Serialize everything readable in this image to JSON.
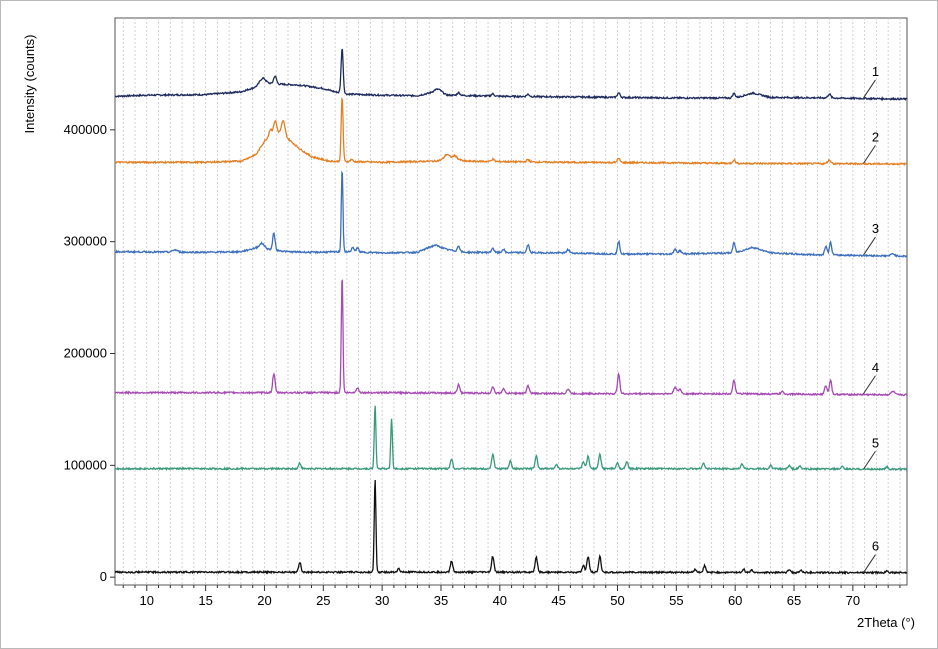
{
  "chart_data": {
    "type": "line",
    "xlabel": "2Theta (°)",
    "ylabel": "Intensity (counts)",
    "xlim": [
      7.3,
      74.6
    ],
    "ylim": [
      -7000,
      500000
    ],
    "x_ticks": [
      10,
      15,
      20,
      25,
      30,
      35,
      40,
      45,
      50,
      55,
      60,
      65,
      70
    ],
    "x_minor_step": 1,
    "y_ticks": [
      0,
      100000,
      200000,
      300000,
      400000
    ],
    "grid": true,
    "grid_x_step": 1,
    "series": [
      {
        "name": "1",
        "color": "#1e2a5c",
        "baseline": 432000,
        "points": [
          [
            7.3,
            430000
          ],
          [
            10,
            431000
          ],
          [
            15,
            431500
          ],
          [
            18,
            434000
          ],
          [
            19.5,
            439000
          ],
          [
            20,
            442000
          ],
          [
            21,
            441000
          ],
          [
            23,
            440000
          ],
          [
            25,
            437000
          ],
          [
            26,
            434000
          ],
          [
            27,
            432000
          ],
          [
            30,
            431000
          ],
          [
            33,
            430500
          ],
          [
            34.5,
            434000
          ],
          [
            35.5,
            431000
          ],
          [
            40,
            430000
          ],
          [
            45,
            429500
          ],
          [
            50,
            429000
          ],
          [
            55,
            428500
          ],
          [
            60,
            428500
          ],
          [
            61.5,
            433000
          ],
          [
            63,
            429000
          ],
          [
            68,
            428500
          ],
          [
            74.6,
            427500
          ]
        ],
        "peaks": [
          [
            19.8,
            5000,
            0.25
          ],
          [
            20.9,
            7000,
            0.12
          ],
          [
            26.6,
            40000,
            0.09
          ],
          [
            34.8,
            3000,
            0.3
          ],
          [
            36.5,
            2500,
            0.12
          ],
          [
            39.4,
            2000,
            0.12
          ],
          [
            42.4,
            2000,
            0.12
          ],
          [
            50.1,
            4000,
            0.12
          ],
          [
            59.9,
            4000,
            0.12
          ],
          [
            68.0,
            3500,
            0.12
          ]
        ]
      },
      {
        "name": "2",
        "color": "#e67e22",
        "baseline": 371000,
        "points": [
          [
            7.3,
            371000
          ],
          [
            15,
            371000
          ],
          [
            18,
            372000
          ],
          [
            19.3,
            378000
          ],
          [
            20,
            390000
          ],
          [
            21,
            399000
          ],
          [
            22,
            392000
          ],
          [
            23,
            383000
          ],
          [
            24,
            376000
          ],
          [
            25.5,
            372000
          ],
          [
            30,
            371000
          ],
          [
            34.5,
            372000
          ],
          [
            36,
            375000
          ],
          [
            37,
            372000
          ],
          [
            45,
            371000
          ],
          [
            55,
            370500
          ],
          [
            60,
            370000
          ],
          [
            74.6,
            369500
          ]
        ],
        "peaks": [
          [
            20.5,
            6000,
            0.12
          ],
          [
            20.9,
            10000,
            0.12
          ],
          [
            21.6,
            13000,
            0.15
          ],
          [
            26.6,
            58000,
            0.08
          ],
          [
            27.4,
            2000,
            0.1
          ],
          [
            35.5,
            4000,
            0.2
          ],
          [
            36.2,
            2500,
            0.15
          ],
          [
            39.4,
            2000,
            0.12
          ],
          [
            42.4,
            2000,
            0.12
          ],
          [
            50.1,
            3500,
            0.12
          ],
          [
            59.9,
            3000,
            0.12
          ],
          [
            68.0,
            3000,
            0.15
          ]
        ]
      },
      {
        "name": "3",
        "color": "#3d6fbf",
        "baseline": 291000,
        "points": [
          [
            7.3,
            291000
          ],
          [
            15,
            290500
          ],
          [
            18,
            291000
          ],
          [
            19.5,
            295000
          ],
          [
            20.5,
            293000
          ],
          [
            22,
            291000
          ],
          [
            24,
            290500
          ],
          [
            27,
            291000
          ],
          [
            30,
            290000
          ],
          [
            33,
            290500
          ],
          [
            34.5,
            297000
          ],
          [
            35.5,
            293000
          ],
          [
            37,
            290500
          ],
          [
            45,
            290000
          ],
          [
            50,
            289000
          ],
          [
            55,
            289000
          ],
          [
            60,
            290000
          ],
          [
            61.5,
            295000
          ],
          [
            63,
            290000
          ],
          [
            66,
            288500
          ],
          [
            74.6,
            287000
          ]
        ],
        "peaks": [
          [
            12.4,
            2000,
            0.2
          ],
          [
            19.8,
            4000,
            0.2
          ],
          [
            20.8,
            15000,
            0.1
          ],
          [
            26.6,
            75000,
            0.07
          ],
          [
            27.5,
            4000,
            0.1
          ],
          [
            27.9,
            4000,
            0.1
          ],
          [
            36.5,
            5000,
            0.1
          ],
          [
            39.4,
            4000,
            0.1
          ],
          [
            40.3,
            3000,
            0.1
          ],
          [
            42.4,
            7000,
            0.1
          ],
          [
            45.8,
            3000,
            0.12
          ],
          [
            50.1,
            11000,
            0.1
          ],
          [
            54.9,
            4000,
            0.12
          ],
          [
            55.3,
            3000,
            0.12
          ],
          [
            59.9,
            9000,
            0.1
          ],
          [
            67.7,
            8000,
            0.1
          ],
          [
            68.1,
            11000,
            0.1
          ],
          [
            73.4,
            2000,
            0.15
          ]
        ]
      },
      {
        "name": "4",
        "color": "#a64ab3",
        "baseline": 165000,
        "points": [
          [
            7.3,
            165000
          ],
          [
            20,
            165000
          ],
          [
            30,
            165000
          ],
          [
            40,
            164500
          ],
          [
            50,
            164000
          ],
          [
            60,
            164000
          ],
          [
            74.6,
            163000
          ]
        ],
        "peaks": [
          [
            20.8,
            17000,
            0.1
          ],
          [
            26.6,
            106000,
            0.07
          ],
          [
            27.9,
            4000,
            0.12
          ],
          [
            36.5,
            8000,
            0.1
          ],
          [
            39.4,
            6000,
            0.1
          ],
          [
            40.3,
            4000,
            0.1
          ],
          [
            42.4,
            7000,
            0.1
          ],
          [
            45.8,
            4000,
            0.12
          ],
          [
            50.1,
            18000,
            0.1
          ],
          [
            54.9,
            6000,
            0.12
          ],
          [
            55.3,
            4000,
            0.12
          ],
          [
            59.9,
            12000,
            0.1
          ],
          [
            64.0,
            2000,
            0.12
          ],
          [
            67.7,
            8000,
            0.1
          ],
          [
            68.1,
            13000,
            0.1
          ],
          [
            73.4,
            3000,
            0.15
          ]
        ]
      },
      {
        "name": "5",
        "color": "#3a9a78",
        "baseline": 97000,
        "points": [
          [
            7.3,
            97000
          ],
          [
            20,
            97000
          ],
          [
            30,
            97000
          ],
          [
            40,
            97000
          ],
          [
            50,
            97000
          ],
          [
            60,
            97000
          ],
          [
            74.6,
            96500
          ]
        ],
        "peaks": [
          [
            23.0,
            5000,
            0.1
          ],
          [
            29.4,
            57000,
            0.07
          ],
          [
            30.8,
            45000,
            0.07
          ],
          [
            35.9,
            9000,
            0.1
          ],
          [
            39.4,
            13000,
            0.1
          ],
          [
            40.9,
            7000,
            0.1
          ],
          [
            43.1,
            11000,
            0.1
          ],
          [
            44.8,
            4000,
            0.1
          ],
          [
            47.1,
            6000,
            0.1
          ],
          [
            47.5,
            11000,
            0.1
          ],
          [
            48.5,
            13000,
            0.1
          ],
          [
            50.0,
            5000,
            0.1
          ],
          [
            50.8,
            6000,
            0.1
          ],
          [
            57.3,
            5000,
            0.1
          ],
          [
            60.6,
            4000,
            0.1
          ],
          [
            63.0,
            3000,
            0.1
          ],
          [
            64.6,
            3000,
            0.1
          ],
          [
            65.5,
            2500,
            0.1
          ],
          [
            69.1,
            2000,
            0.1
          ],
          [
            72.9,
            2000,
            0.1
          ]
        ]
      },
      {
        "name": "6",
        "color": "#111111",
        "baseline": 4500,
        "points": [
          [
            7.3,
            4500
          ],
          [
            20,
            4500
          ],
          [
            40,
            4500
          ],
          [
            74.6,
            4000
          ]
        ],
        "peaks": [
          [
            23.0,
            9000,
            0.1
          ],
          [
            29.4,
            84000,
            0.07
          ],
          [
            31.4,
            3000,
            0.1
          ],
          [
            35.9,
            10000,
            0.1
          ],
          [
            39.4,
            14000,
            0.1
          ],
          [
            43.1,
            13000,
            0.1
          ],
          [
            47.1,
            6000,
            0.1
          ],
          [
            47.5,
            14000,
            0.1
          ],
          [
            48.5,
            14000,
            0.1
          ],
          [
            56.6,
            3000,
            0.1
          ],
          [
            57.4,
            6000,
            0.1
          ],
          [
            60.7,
            3000,
            0.1
          ],
          [
            61.4,
            2000,
            0.1
          ],
          [
            64.6,
            3000,
            0.1
          ],
          [
            65.6,
            2000,
            0.1
          ],
          [
            72.9,
            2000,
            0.1
          ]
        ]
      }
    ],
    "series_labels": [
      {
        "text": "1",
        "x": 70.9,
        "y": 428500
      },
      {
        "text": "2",
        "x": 70.9,
        "y": 370000
      },
      {
        "text": "3",
        "x": 70.9,
        "y": 288000
      },
      {
        "text": "4",
        "x": 70.9,
        "y": 164000
      },
      {
        "text": "5",
        "x": 70.9,
        "y": 96500
      },
      {
        "text": "6",
        "x": 70.9,
        "y": 4000
      }
    ]
  }
}
